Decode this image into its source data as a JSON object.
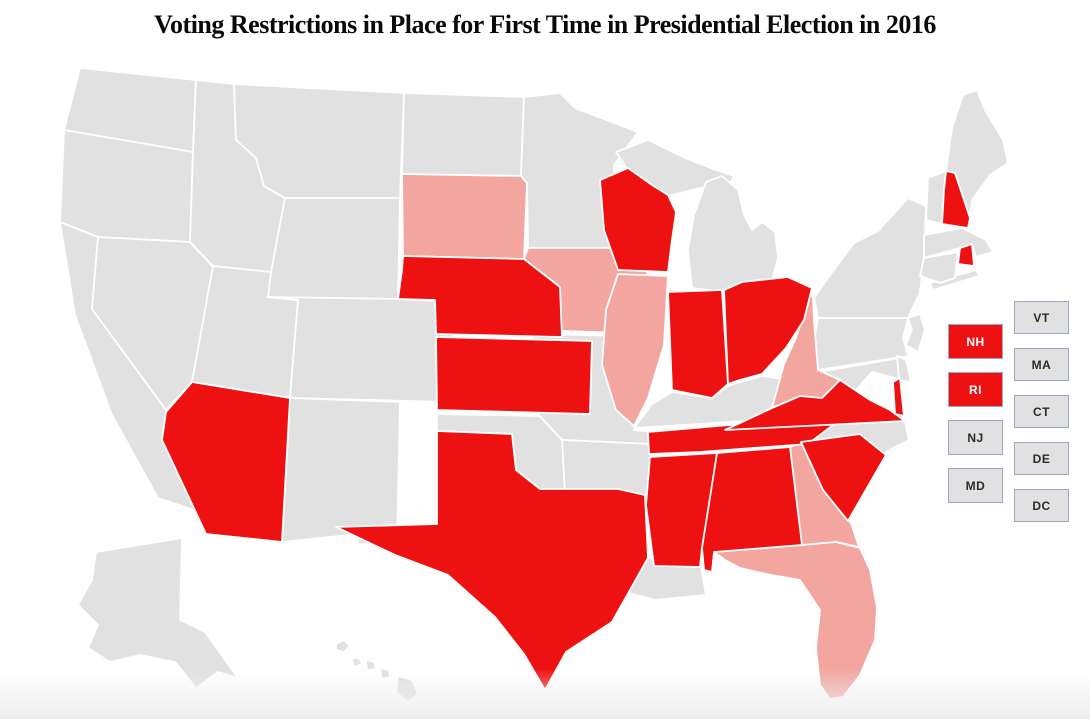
{
  "title": "Voting Restrictions in Place for First Time in Presidential Election in 2016",
  "colors": {
    "bright_red": "#ee1111",
    "light_pink": "#f3a69f",
    "gray": "#e1e1e1",
    "state_border": "#ffffff",
    "box_border": "#9aa9c0",
    "box_text_dark": "#2b2b2b",
    "box_text_on_red": "#ffffff",
    "title_color": "#0a0a0a",
    "background": "#ffffff"
  },
  "chart_data": {
    "type": "choropleth",
    "title": "Voting Restrictions in Place for First Time in Presidential Election in 2016",
    "region": "United States, states colored by voting-restriction status",
    "series": [
      {
        "name": "bright_red",
        "hex": "#ee1111",
        "states": [
          "AZ",
          "KS",
          "NE",
          "TX",
          "WI",
          "IN",
          "OH",
          "VA",
          "TN",
          "MS",
          "AL",
          "SC",
          "NH",
          "RI"
        ]
      },
      {
        "name": "light_pink",
        "hex": "#f3a69f",
        "states": [
          "SD",
          "IA",
          "IL",
          "WV",
          "GA",
          "FL"
        ]
      },
      {
        "name": "gray",
        "hex": "#e1e1e1",
        "states": [
          "WA",
          "OR",
          "CA",
          "NV",
          "ID",
          "MT",
          "WY",
          "UT",
          "CO",
          "NM",
          "ND",
          "MN",
          "MO",
          "OK",
          "AR",
          "LA",
          "MI",
          "KY",
          "NC",
          "PA",
          "NY",
          "NJ",
          "MD",
          "DE",
          "CT",
          "MA",
          "VT",
          "ME",
          "AK",
          "HI",
          "DC"
        ]
      }
    ],
    "legend_visible": false,
    "labels_visible_on_map": false
  },
  "map": {
    "states": {
      "WA": "gray",
      "OR": "gray",
      "CA": "gray",
      "NV": "gray",
      "ID": "gray",
      "MT": "gray",
      "WY": "gray",
      "UT": "gray",
      "CO": "gray",
      "NM": "gray",
      "ND": "gray",
      "MN": "gray",
      "MO": "gray",
      "OK": "gray",
      "AR": "gray",
      "LA": "gray",
      "MI": "gray",
      "KY": "gray",
      "NC": "gray",
      "PA": "gray",
      "NY": "gray",
      "NJ": "gray",
      "MD": "gray",
      "DE": "gray",
      "CT": "gray",
      "MA": "gray",
      "VT": "gray",
      "ME": "gray",
      "AK": "gray",
      "HI": "gray",
      "AZ": "bright_red",
      "KS": "bright_red",
      "NE": "bright_red",
      "TX": "bright_red",
      "WI": "bright_red",
      "IN": "bright_red",
      "OH": "bright_red",
      "VA": "bright_red",
      "TN": "bright_red",
      "MS": "bright_red",
      "AL": "bright_red",
      "SC": "bright_red",
      "NH": "bright_red",
      "RI": "bright_red",
      "SD": "light_pink",
      "IA": "light_pink",
      "IL": "light_pink",
      "WV": "light_pink",
      "GA": "light_pink",
      "FL": "light_pink"
    }
  },
  "mini_boxes": {
    "left_column": [
      {
        "label": "NH",
        "category": "bright_red"
      },
      {
        "label": "RI",
        "category": "bright_red"
      },
      {
        "label": "NJ",
        "category": "gray"
      },
      {
        "label": "MD",
        "category": "gray"
      }
    ],
    "right_column": [
      {
        "label": "VT",
        "category": "gray"
      },
      {
        "label": "MA",
        "category": "gray"
      },
      {
        "label": "CT",
        "category": "gray"
      },
      {
        "label": "DE",
        "category": "gray"
      },
      {
        "label": "DC",
        "category": "gray"
      }
    ]
  }
}
